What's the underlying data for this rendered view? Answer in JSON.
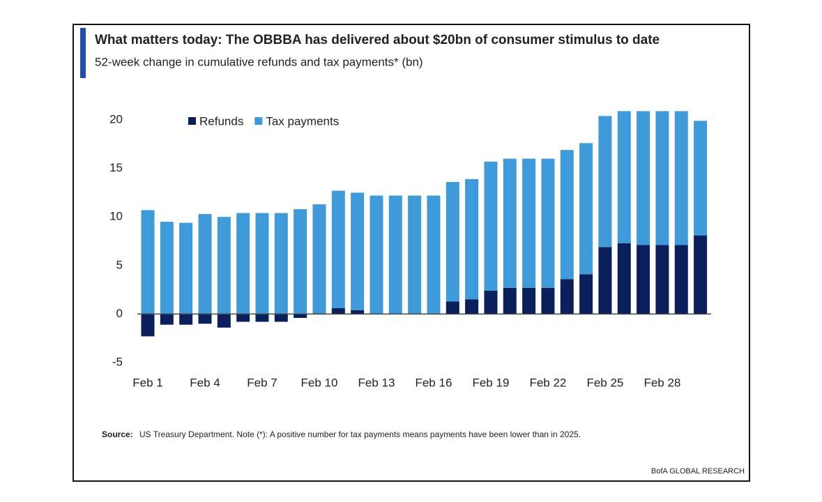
{
  "chart_data": {
    "type": "bar",
    "stacked": true,
    "title": "What matters today: The OBBBA has delivered about $20bn of consumer stimulus to date",
    "subtitle": "52-week change in cumulative refunds and tax payments* (bn)",
    "categories": [
      "Feb 1",
      null,
      null,
      "Feb 4",
      null,
      null,
      "Feb 7",
      null,
      null,
      "Feb 10",
      null,
      null,
      "Feb 13",
      null,
      null,
      "Feb 16",
      null,
      null,
      "Feb 19",
      null,
      null,
      "Feb 22",
      null,
      null,
      "Feb 25",
      null,
      null,
      "Feb 28",
      null,
      null
    ],
    "series": [
      {
        "name": "Refunds",
        "color": "#0b1f5c",
        "values": [
          -2.3,
          -1.1,
          -1.1,
          -1.0,
          -1.4,
          -0.8,
          -0.8,
          -0.8,
          -0.4,
          0,
          0.6,
          0.4,
          0,
          0,
          0,
          0,
          1.3,
          1.5,
          2.4,
          2.7,
          2.7,
          2.7,
          3.6,
          4.1,
          6.9,
          7.3,
          7.1,
          7.1,
          7.1,
          8.1
        ]
      },
      {
        "name": "Tax payments",
        "color": "#3f9ad9",
        "values": [
          10.7,
          9.5,
          9.4,
          10.3,
          10.0,
          10.4,
          10.4,
          10.4,
          10.8,
          11.3,
          12.1,
          12.1,
          12.2,
          12.2,
          12.2,
          12.2,
          12.3,
          12.4,
          13.3,
          13.3,
          13.3,
          13.3,
          13.3,
          13.5,
          13.5,
          13.6,
          13.8,
          13.8,
          13.8,
          11.8
        ]
      }
    ],
    "ylim": [
      -5,
      21
    ],
    "yticks": [
      -5,
      0,
      5,
      10,
      15,
      20
    ],
    "grid": false,
    "legend": "top-left",
    "source_label": "Source:",
    "source_text": "US Treasury Department. Note (*): A positive number for tax payments means payments have been lower than in 2025.",
    "credit": "BofA GLOBAL RESEARCH"
  }
}
